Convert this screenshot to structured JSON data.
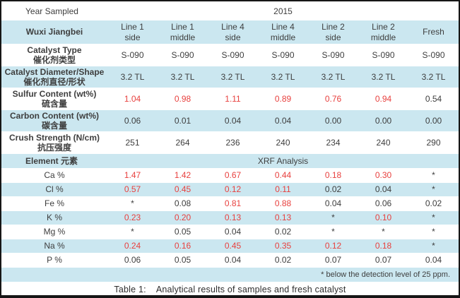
{
  "colors": {
    "row_blue": "#cbe7f0",
    "value_red": "#e8413f",
    "text_dark": "#3e3e3e"
  },
  "table": {
    "year_label": "Year Sampled",
    "year_value": "2015",
    "site_label": "Wuxi Jiangbei",
    "columns": [
      {
        "line1": "Line 1",
        "line2": "side"
      },
      {
        "line1": "Line 1",
        "line2": "middle"
      },
      {
        "line1": "Line 4",
        "line2": "side"
      },
      {
        "line1": "Line 4",
        "line2": "middle"
      },
      {
        "line1": "Line 2",
        "line2": "side"
      },
      {
        "line1": "Line 2",
        "line2": "middle"
      },
      {
        "line1": "Fresh",
        "line2": ""
      }
    ],
    "property_rows": [
      {
        "label_en": "Catalyst Type",
        "label_zh": "催化剂类型",
        "values": [
          "S-090",
          "S-090",
          "S-090",
          "S-090",
          "S-090",
          "S-090",
          "S-090"
        ],
        "red": [
          0,
          0,
          0,
          0,
          0,
          0,
          0
        ],
        "shade": false
      },
      {
        "label_en": "Catalyst Diameter/Shape",
        "label_zh": "催化剂直径/形状",
        "values": [
          "3.2 TL",
          "3.2 TL",
          "3.2 TL",
          "3.2 TL",
          "3.2 TL",
          "3.2 TL",
          "3.2 TL"
        ],
        "red": [
          0,
          0,
          0,
          0,
          0,
          0,
          0
        ],
        "shade": true
      },
      {
        "label_en": "Sulfur Content (wt%)",
        "label_zh": "硫含量",
        "values": [
          "1.04",
          "0.98",
          "1.11",
          "0.89",
          "0.76",
          "0.94",
          "0.54"
        ],
        "red": [
          1,
          1,
          1,
          1,
          1,
          1,
          0
        ],
        "shade": false
      },
      {
        "label_en": "Carbon Content (wt%)",
        "label_zh": "碳含量",
        "values": [
          "0.06",
          "0.01",
          "0.04",
          "0.04",
          "0.00",
          "0.00",
          "0.00"
        ],
        "red": [
          0,
          0,
          0,
          0,
          0,
          0,
          0
        ],
        "shade": true
      },
      {
        "label_en": "Crush Strength (N/cm)",
        "label_zh": "抗压强度",
        "values": [
          "251",
          "264",
          "236",
          "240",
          "234",
          "240",
          "290"
        ],
        "red": [
          0,
          0,
          0,
          0,
          0,
          0,
          0
        ],
        "shade": false
      }
    ],
    "element_header": {
      "label": "Element 元素",
      "value": "XRF Analysis"
    },
    "element_rows": [
      {
        "label": "Ca %",
        "values": [
          "1.47",
          "1.42",
          "0.67",
          "0.44",
          "0.18",
          "0.30",
          "*"
        ],
        "red": [
          1,
          1,
          1,
          1,
          1,
          1,
          0
        ],
        "shade": false
      },
      {
        "label": "Cl %",
        "values": [
          "0.57",
          "0.45",
          "0.12",
          "0.11",
          "0.02",
          "0.04",
          "*"
        ],
        "red": [
          1,
          1,
          1,
          1,
          0,
          0,
          0
        ],
        "shade": true
      },
      {
        "label": "Fe %",
        "values": [
          "*",
          "0.08",
          "0.81",
          "0.88",
          "0.04",
          "0.06",
          "0.02"
        ],
        "red": [
          0,
          0,
          1,
          1,
          0,
          0,
          0
        ],
        "shade": false
      },
      {
        "label": "K %",
        "values": [
          "0.23",
          "0.20",
          "0.13",
          "0.13",
          "*",
          "0.10",
          "*"
        ],
        "red": [
          1,
          1,
          1,
          1,
          0,
          1,
          0
        ],
        "shade": true
      },
      {
        "label": "Mg %",
        "values": [
          "*",
          "0.05",
          "0.04",
          "0.02",
          "*",
          "*",
          "*"
        ],
        "red": [
          0,
          0,
          0,
          0,
          0,
          0,
          0
        ],
        "shade": false
      },
      {
        "label": "Na %",
        "values": [
          "0.24",
          "0.16",
          "0.45",
          "0.35",
          "0.12",
          "0.18",
          "*"
        ],
        "red": [
          1,
          1,
          1,
          1,
          1,
          1,
          0
        ],
        "shade": true
      },
      {
        "label": "P %",
        "values": [
          "0.06",
          "0.05",
          "0.04",
          "0.02",
          "0.07",
          "0.07",
          "0.04"
        ],
        "red": [
          0,
          0,
          0,
          0,
          0,
          0,
          0
        ],
        "shade": false
      }
    ],
    "footnote": "* below the detection level of 25 ppm."
  },
  "caption": {
    "prefix": "Table 1:",
    "text": "Analytical results of samples and fresh catalyst"
  }
}
